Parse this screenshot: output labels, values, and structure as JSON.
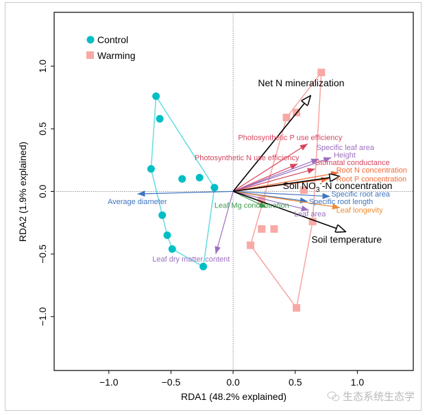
{
  "chart_data": {
    "type": "scatter",
    "title": "",
    "xlabel": "RDA1 (48.2% explained)",
    "ylabel": "RDA2 (1.9% explained)",
    "xlim": [
      -1.44,
      1.45
    ],
    "ylim": [
      -1.43,
      1.43
    ],
    "xticks": [
      -1.0,
      -0.5,
      0.0,
      0.5,
      1.0
    ],
    "xtick_labels": [
      "−1.0",
      "−0.5",
      "0.0",
      "0.5",
      "1.0"
    ],
    "yticks": [
      -1.0,
      -0.5,
      0.0,
      0.5,
      1.0
    ],
    "ytick_labels": [
      "−1.0",
      "−0.5",
      "0.0",
      "0.5",
      "1.0"
    ],
    "grid": false,
    "zero_lines": true,
    "legend": {
      "placement": "top-left",
      "entries": [
        {
          "label": "Control",
          "marker": "circle",
          "color": "#00BFC4"
        },
        {
          "label": "Warming",
          "marker": "square",
          "color": "#F8A9A5"
        }
      ]
    },
    "series": [
      {
        "name": "Control",
        "marker": "circle",
        "color": "#00BFC4",
        "hull_color": "#6ADFE3",
        "points": [
          {
            "x": -0.62,
            "y": 0.76
          },
          {
            "x": -0.59,
            "y": 0.58
          },
          {
            "x": -0.66,
            "y": 0.18
          },
          {
            "x": -0.41,
            "y": 0.1
          },
          {
            "x": -0.27,
            "y": 0.11
          },
          {
            "x": -0.15,
            "y": 0.03
          },
          {
            "x": -0.57,
            "y": -0.19
          },
          {
            "x": -0.53,
            "y": -0.35
          },
          {
            "x": -0.49,
            "y": -0.46
          },
          {
            "x": -0.24,
            "y": -0.6
          }
        ],
        "hull": [
          [
            -0.62,
            0.76
          ],
          [
            -0.15,
            0.03
          ],
          [
            -0.24,
            -0.6
          ],
          [
            -0.49,
            -0.46
          ],
          [
            -0.53,
            -0.35
          ],
          [
            -0.57,
            -0.19
          ],
          [
            -0.66,
            0.18
          ]
        ]
      },
      {
        "name": "Warming",
        "marker": "square",
        "color": "#F8A9A5",
        "hull_color": "#F8A9A5",
        "points": [
          {
            "x": 0.71,
            "y": 0.95
          },
          {
            "x": 0.51,
            "y": 0.63
          },
          {
            "x": 0.43,
            "y": 0.59
          },
          {
            "x": 0.57,
            "y": 0.01
          },
          {
            "x": 0.23,
            "y": -0.07
          },
          {
            "x": 0.23,
            "y": -0.3
          },
          {
            "x": 0.33,
            "y": -0.3
          },
          {
            "x": 0.14,
            "y": -0.43
          },
          {
            "x": 0.64,
            "y": -0.24
          },
          {
            "x": 0.51,
            "y": -0.93
          }
        ],
        "hull": [
          [
            0.71,
            0.95
          ],
          [
            0.43,
            0.59
          ],
          [
            0.14,
            -0.43
          ],
          [
            0.51,
            -0.93
          ],
          [
            0.64,
            -0.24
          ]
        ]
      }
    ],
    "env_vectors": [
      {
        "name": "Net N mineralization",
        "x": 0.62,
        "y": 0.76,
        "label_x": 0.2,
        "label_y": 0.84
      },
      {
        "name": "Soil NO3--N concentration",
        "name_parts": [
          "Soil NO",
          "3",
          "-",
          "-N concentration"
        ],
        "x": 0.85,
        "y": 0.12,
        "label_x": 0.4,
        "label_y": 0.02
      },
      {
        "name": "Soil temperature",
        "x": 0.9,
        "y": -0.32,
        "label_x": 0.63,
        "label_y": -0.41
      }
    ],
    "trait_vectors": [
      {
        "name": "Photosynthetic P use efficiency",
        "x": 0.6,
        "y": 0.38,
        "color": "#D6465E",
        "label_x": 0.04,
        "label_y": 0.41
      },
      {
        "name": "Photosynthetic N use efficiency",
        "x": 0.52,
        "y": 0.22,
        "color": "#D6465E",
        "label_x": -0.31,
        "label_y": 0.25
      },
      {
        "name": "Specific leaf area",
        "x": 0.69,
        "y": 0.26,
        "color": "#9B6FC0",
        "label_x": 0.67,
        "label_y": 0.33
      },
      {
        "name": "Height",
        "x": 0.79,
        "y": 0.27,
        "color": "#9B6FC0",
        "label_x": 0.81,
        "label_y": 0.27
      },
      {
        "name": "Stomatal conductance",
        "x": 0.66,
        "y": 0.18,
        "color": "#D6465E",
        "label_x": 0.66,
        "label_y": 0.21
      },
      {
        "name": "Root N concentration",
        "x": 0.85,
        "y": 0.15,
        "color": "#F26B38",
        "label_x": 0.83,
        "label_y": 0.15
      },
      {
        "name": "Root P concentration",
        "x": 0.77,
        "y": 0.1,
        "color": "#F26B38",
        "label_x": 0.83,
        "label_y": 0.08
      },
      {
        "name": "Specific root area",
        "x": 0.78,
        "y": -0.04,
        "color": "#3E74BF",
        "label_x": 0.79,
        "label_y": -0.04
      },
      {
        "name": "Specific root length",
        "x": 0.6,
        "y": -0.08,
        "color": "#3E74BF",
        "label_x": 0.61,
        "label_y": -0.1
      },
      {
        "name": "Leaf longevity",
        "x": 0.86,
        "y": -0.13,
        "color": "#F08A32",
        "label_x": 0.83,
        "label_y": -0.17
      },
      {
        "name": "Leaf area",
        "x": 0.61,
        "y": -0.15,
        "color": "#9B6FC0",
        "label_x": 0.49,
        "label_y": -0.2
      },
      {
        "name": "Leaf Mg concentration",
        "x": 0.27,
        "y": -0.13,
        "color": "#3E9A4E",
        "label_x": -0.15,
        "label_y": -0.13
      },
      {
        "name": "Average diameter",
        "x": -0.77,
        "y": -0.02,
        "color": "#3E74BF",
        "label_x": -1.01,
        "label_y": -0.1
      },
      {
        "name": "Leaf dry matter content",
        "x": -0.14,
        "y": -0.5,
        "color": "#9B6FC0",
        "label_x": -0.65,
        "label_y": -0.56
      }
    ]
  },
  "watermark": {
    "icon": "wechat-icon",
    "text": "生态系统生态学"
  }
}
